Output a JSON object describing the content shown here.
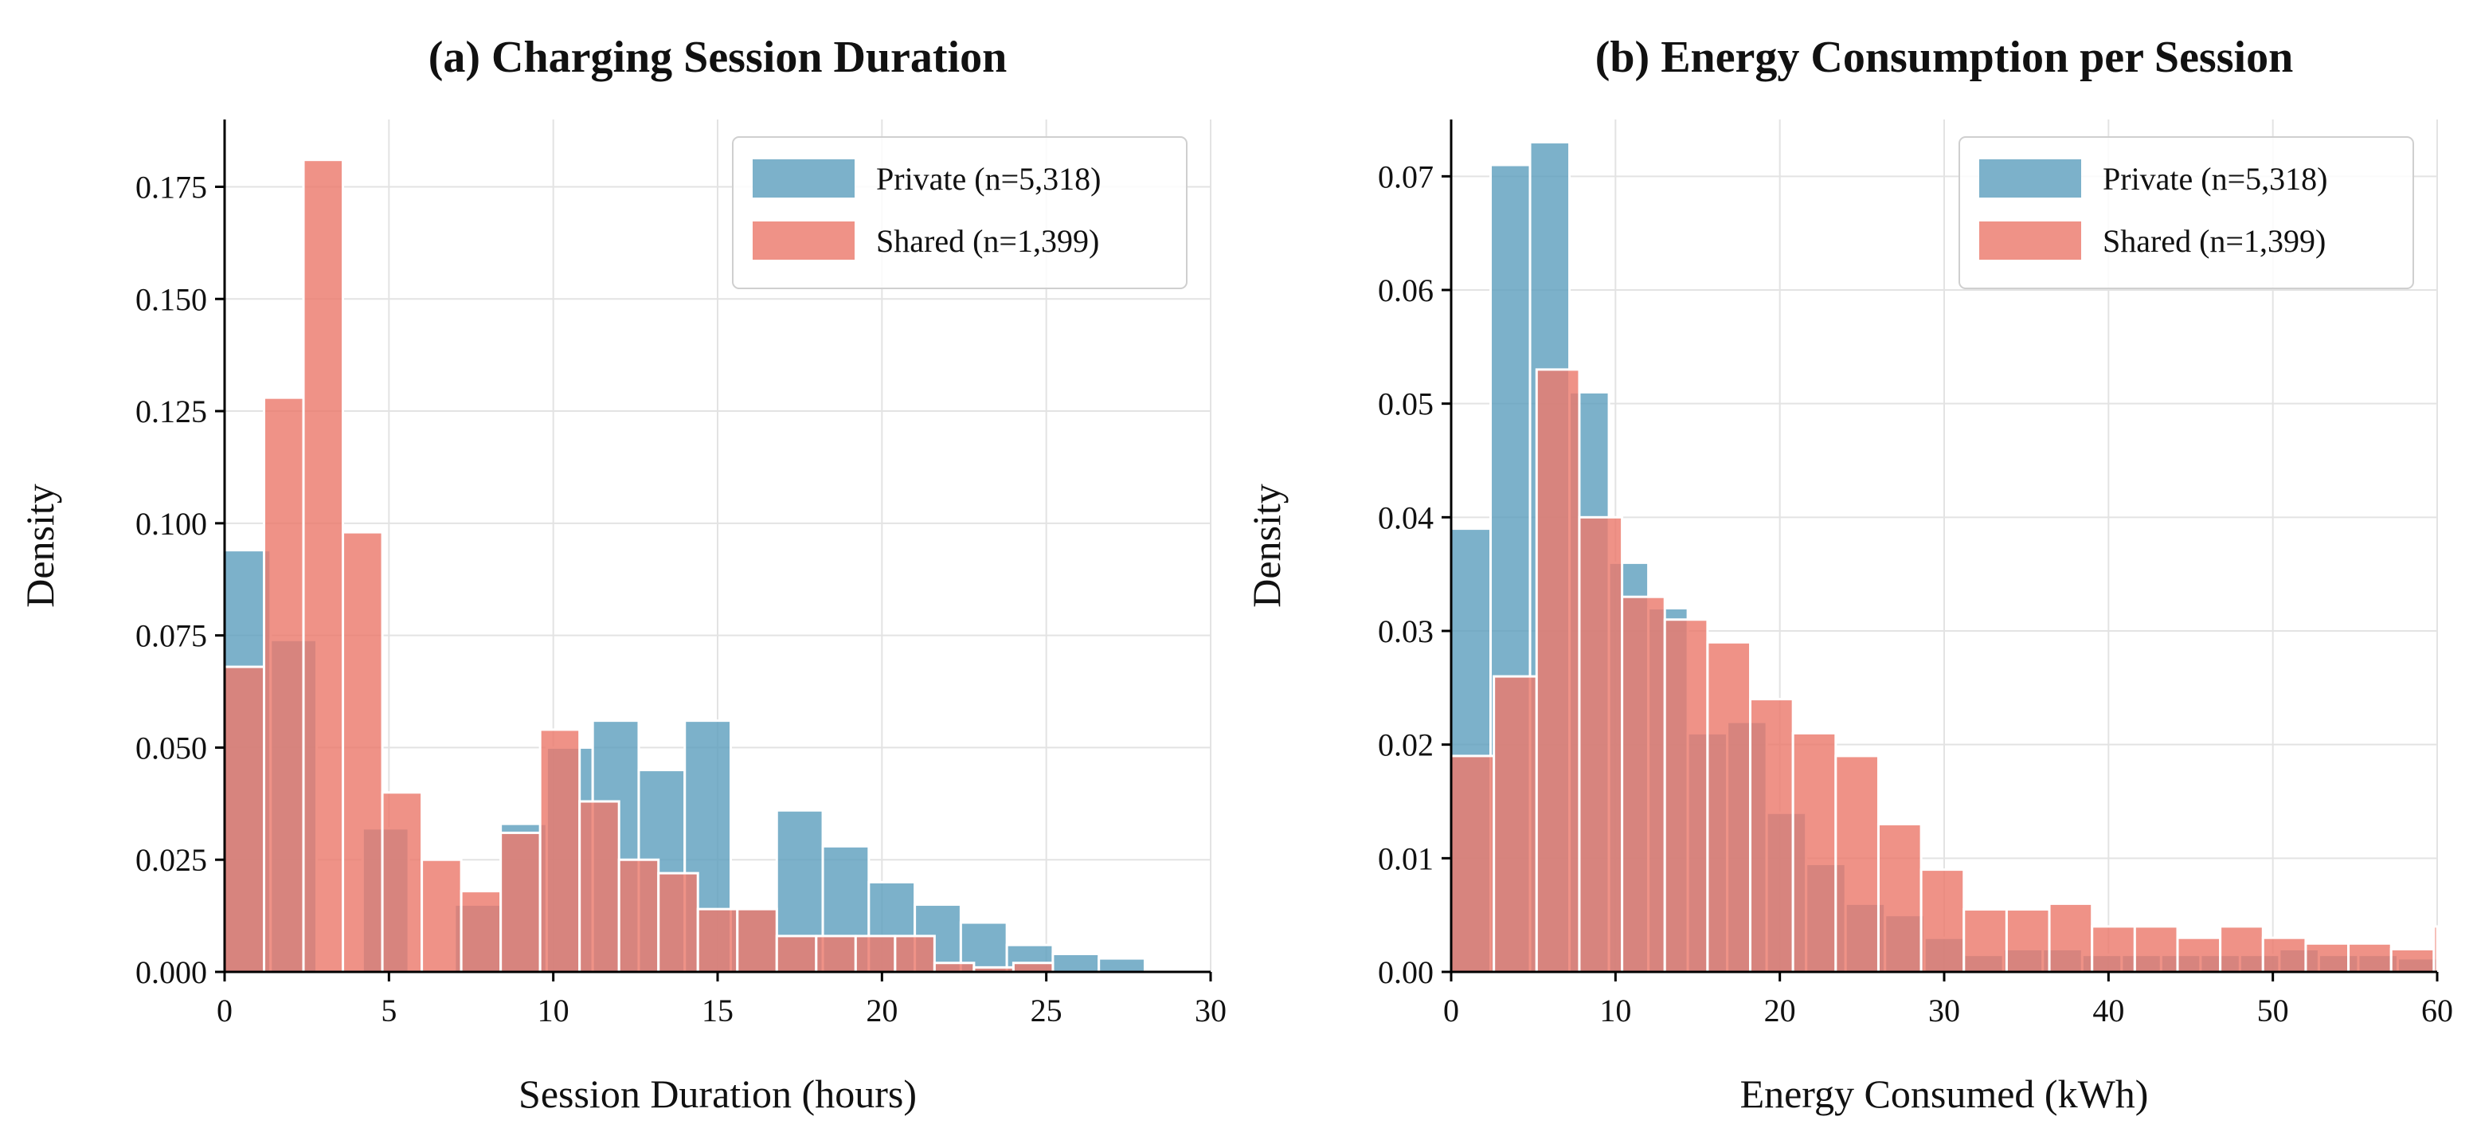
{
  "chart_data": [
    {
      "id": "duration",
      "type": "bar",
      "title": "(a) Charging Session Duration",
      "xlabel": "Session Duration (hours)",
      "ylabel": "Density",
      "xlim": [
        0,
        30
      ],
      "ylim": [
        0,
        0.19
      ],
      "xticks": [
        0,
        5,
        10,
        15,
        20,
        25,
        30
      ],
      "yticks": [
        0.0,
        0.025,
        0.05,
        0.075,
        0.1,
        0.125,
        0.15,
        0.175
      ],
      "ytick_labels": [
        "0.000",
        "0.025",
        "0.050",
        "0.075",
        "0.100",
        "0.125",
        "0.150",
        "0.175"
      ],
      "grid": true,
      "legend_position": "top-right",
      "series": [
        {
          "name": "Private (n=5,318)",
          "color": "#5fa0be",
          "bins": [
            [
              0.0,
              1.4,
              0.094
            ],
            [
              1.4,
              2.8,
              0.074
            ],
            [
              4.2,
              5.6,
              0.032
            ],
            [
              7.0,
              8.4,
              0.015
            ],
            [
              8.4,
              9.8,
              0.033
            ],
            [
              9.8,
              11.2,
              0.05
            ],
            [
              11.2,
              12.6,
              0.056
            ],
            [
              12.6,
              14.0,
              0.045
            ],
            [
              14.0,
              15.4,
              0.056
            ],
            [
              15.4,
              16.8,
              0.014
            ],
            [
              16.8,
              18.2,
              0.036
            ],
            [
              18.2,
              19.6,
              0.028
            ],
            [
              19.6,
              21.0,
              0.02
            ],
            [
              21.0,
              22.4,
              0.015
            ],
            [
              22.4,
              23.8,
              0.011
            ],
            [
              23.8,
              25.2,
              0.006
            ],
            [
              25.2,
              26.6,
              0.004
            ],
            [
              26.6,
              28.0,
              0.003
            ]
          ]
        },
        {
          "name": "Shared (n=1,399)",
          "color": "#ec7a6c",
          "bins": [
            [
              0.0,
              1.2,
              0.068
            ],
            [
              1.2,
              2.4,
              0.128
            ],
            [
              2.4,
              3.6,
              0.181
            ],
            [
              3.6,
              4.8,
              0.098
            ],
            [
              4.8,
              6.0,
              0.04
            ],
            [
              6.0,
              7.2,
              0.025
            ],
            [
              7.2,
              8.4,
              0.018
            ],
            [
              8.4,
              9.6,
              0.031
            ],
            [
              9.6,
              10.8,
              0.054
            ],
            [
              10.8,
              12.0,
              0.038
            ],
            [
              12.0,
              13.2,
              0.025
            ],
            [
              13.2,
              14.4,
              0.022
            ],
            [
              14.4,
              15.6,
              0.014
            ],
            [
              15.6,
              16.8,
              0.014
            ],
            [
              16.8,
              18.0,
              0.008
            ],
            [
              18.0,
              19.2,
              0.008
            ],
            [
              19.2,
              20.4,
              0.008
            ],
            [
              20.4,
              21.6,
              0.008
            ],
            [
              21.6,
              22.8,
              0.002
            ],
            [
              22.8,
              24.0,
              0.001
            ],
            [
              24.0,
              25.2,
              0.002
            ]
          ]
        }
      ]
    },
    {
      "id": "energy",
      "type": "bar",
      "title": "(b) Energy Consumption per Session",
      "xlabel": "Energy Consumed (kWh)",
      "ylabel": "Density",
      "xlim": [
        0,
        60
      ],
      "ylim": [
        0,
        0.075
      ],
      "xticks": [
        0,
        10,
        20,
        30,
        40,
        50,
        60
      ],
      "yticks": [
        0.0,
        0.01,
        0.02,
        0.03,
        0.04,
        0.05,
        0.06,
        0.07
      ],
      "ytick_labels": [
        "0.00",
        "0.01",
        "0.02",
        "0.03",
        "0.04",
        "0.05",
        "0.06",
        "0.07"
      ],
      "grid": true,
      "legend_position": "top-right",
      "series": [
        {
          "name": "Private (n=5,318)",
          "color": "#5fa0be",
          "bins": [
            [
              0.0,
              2.4,
              0.039
            ],
            [
              2.4,
              4.8,
              0.071
            ],
            [
              4.8,
              7.2,
              0.073
            ],
            [
              7.2,
              9.6,
              0.051
            ],
            [
              9.6,
              12.0,
              0.036
            ],
            [
              12.0,
              14.4,
              0.032
            ],
            [
              14.4,
              16.8,
              0.021
            ],
            [
              16.8,
              19.2,
              0.022
            ],
            [
              19.2,
              21.6,
              0.014
            ],
            [
              21.6,
              24.0,
              0.0095
            ],
            [
              24.0,
              26.4,
              0.006
            ],
            [
              26.4,
              28.8,
              0.005
            ],
            [
              28.8,
              31.2,
              0.003
            ],
            [
              31.2,
              33.6,
              0.0015
            ],
            [
              33.6,
              36.0,
              0.002
            ],
            [
              36.0,
              38.4,
              0.002
            ],
            [
              38.4,
              40.8,
              0.0015
            ],
            [
              40.8,
              43.2,
              0.0015
            ],
            [
              43.2,
              45.6,
              0.0015
            ],
            [
              45.6,
              48.0,
              0.0015
            ],
            [
              48.0,
              50.4,
              0.0015
            ],
            [
              50.4,
              52.8,
              0.002
            ],
            [
              52.8,
              55.2,
              0.0015
            ],
            [
              55.2,
              57.6,
              0.0015
            ],
            [
              57.6,
              60.0,
              0.0012
            ]
          ]
        },
        {
          "name": "Shared (n=1,399)",
          "color": "#ec7a6c",
          "bins": [
            [
              0.0,
              2.6,
              0.019
            ],
            [
              2.6,
              5.2,
              0.026
            ],
            [
              5.2,
              7.8,
              0.053
            ],
            [
              7.8,
              10.4,
              0.04
            ],
            [
              10.4,
              13.0,
              0.033
            ],
            [
              13.0,
              15.6,
              0.031
            ],
            [
              15.6,
              18.2,
              0.029
            ],
            [
              18.2,
              20.8,
              0.024
            ],
            [
              20.8,
              23.4,
              0.021
            ],
            [
              23.4,
              26.0,
              0.019
            ],
            [
              26.0,
              28.6,
              0.013
            ],
            [
              28.6,
              31.2,
              0.009
            ],
            [
              31.2,
              33.8,
              0.0055
            ],
            [
              33.8,
              36.4,
              0.0055
            ],
            [
              36.4,
              39.0,
              0.006
            ],
            [
              39.0,
              41.6,
              0.004
            ],
            [
              41.6,
              44.2,
              0.004
            ],
            [
              44.2,
              46.8,
              0.003
            ],
            [
              46.8,
              49.4,
              0.004
            ],
            [
              49.4,
              52.0,
              0.003
            ],
            [
              52.0,
              54.6,
              0.0025
            ],
            [
              54.6,
              57.2,
              0.0025
            ],
            [
              57.2,
              59.8,
              0.002
            ],
            [
              59.8,
              62.4,
              0.004
            ]
          ]
        }
      ]
    }
  ]
}
